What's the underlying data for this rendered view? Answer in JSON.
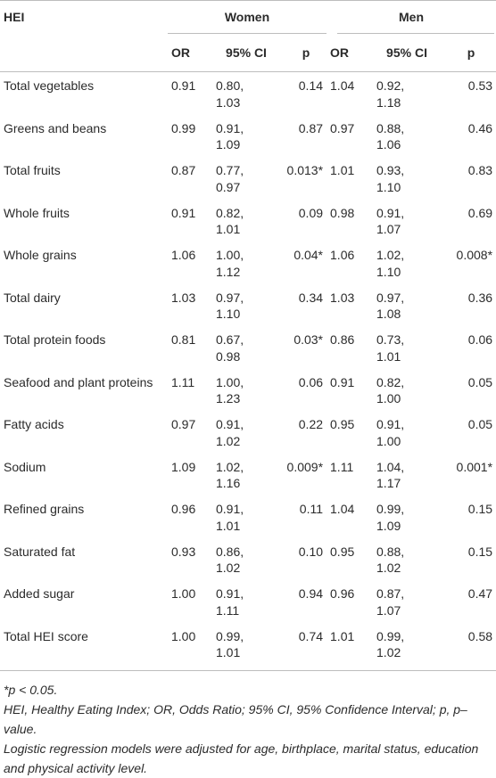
{
  "header": {
    "hei": "HEI",
    "women": "Women",
    "men": "Men",
    "or": "OR",
    "ci": "95% CI",
    "p": "p"
  },
  "rows": [
    {
      "name": "Total vegetables",
      "w_or": "0.91",
      "w_ci1": "0.80,",
      "w_ci2": "1.03",
      "w_p": "0.14",
      "m_or": "1.04",
      "m_ci1": "0.92,",
      "m_ci2": "1.18",
      "m_p": "0.53"
    },
    {
      "name": "Greens and beans",
      "w_or": "0.99",
      "w_ci1": "0.91,",
      "w_ci2": "1.09",
      "w_p": "0.87",
      "m_or": "0.97",
      "m_ci1": "0.88,",
      "m_ci2": "1.06",
      "m_p": "0.46"
    },
    {
      "name": "Total fruits",
      "w_or": "0.87",
      "w_ci1": "0.77,",
      "w_ci2": "0.97",
      "w_p": "0.013*",
      "m_or": "1.01",
      "m_ci1": "0.93,",
      "m_ci2": "1.10",
      "m_p": "0.83"
    },
    {
      "name": "Whole fruits",
      "w_or": "0.91",
      "w_ci1": "0.82,",
      "w_ci2": "1.01",
      "w_p": "0.09",
      "m_or": "0.98",
      "m_ci1": "0.91,",
      "m_ci2": "1.07",
      "m_p": "0.69"
    },
    {
      "name": "Whole grains",
      "w_or": "1.06",
      "w_ci1": "1.00,",
      "w_ci2": "1.12",
      "w_p": "0.04*",
      "m_or": "1.06",
      "m_ci1": "1.02,",
      "m_ci2": "1.10",
      "m_p": "0.008*"
    },
    {
      "name": "Total dairy",
      "w_or": "1.03",
      "w_ci1": "0.97,",
      "w_ci2": "1.10",
      "w_p": "0.34",
      "m_or": "1.03",
      "m_ci1": "0.97,",
      "m_ci2": "1.08",
      "m_p": "0.36"
    },
    {
      "name": "Total protein foods",
      "w_or": "0.81",
      "w_ci1": "0.67,",
      "w_ci2": "0.98",
      "w_p": "0.03*",
      "m_or": "0.86",
      "m_ci1": "0.73,",
      "m_ci2": "1.01",
      "m_p": "0.06"
    },
    {
      "name": "Seafood and plant proteins",
      "w_or": "1.11",
      "w_ci1": "1.00,",
      "w_ci2": "1.23",
      "w_p": "0.06",
      "m_or": "0.91",
      "m_ci1": "0.82,",
      "m_ci2": "1.00",
      "m_p": "0.05"
    },
    {
      "name": "Fatty acids",
      "w_or": "0.97",
      "w_ci1": "0.91,",
      "w_ci2": "1.02",
      "w_p": "0.22",
      "m_or": "0.95",
      "m_ci1": "0.91,",
      "m_ci2": "1.00",
      "m_p": "0.05"
    },
    {
      "name": "Sodium",
      "w_or": "1.09",
      "w_ci1": "1.02,",
      "w_ci2": "1.16",
      "w_p": "0.009*",
      "m_or": "1.11",
      "m_ci1": "1.04,",
      "m_ci2": "1.17",
      "m_p": "0.001*"
    },
    {
      "name": "Refined grains",
      "w_or": "0.96",
      "w_ci1": "0.91,",
      "w_ci2": "1.01",
      "w_p": "0.11",
      "m_or": "1.04",
      "m_ci1": "0.99,",
      "m_ci2": "1.09",
      "m_p": "0.15"
    },
    {
      "name": "Saturated fat",
      "w_or": "0.93",
      "w_ci1": "0.86,",
      "w_ci2": "1.02",
      "w_p": "0.10",
      "m_or": "0.95",
      "m_ci1": "0.88,",
      "m_ci2": "1.02",
      "m_p": "0.15"
    },
    {
      "name": "Added sugar",
      "w_or": "1.00",
      "w_ci1": "0.91,",
      "w_ci2": "1.11",
      "w_p": "0.94",
      "m_or": "0.96",
      "m_ci1": "0.87,",
      "m_ci2": "1.07",
      "m_p": "0.47"
    },
    {
      "name": "Total HEI score",
      "w_or": "1.00",
      "w_ci1": "0.99,",
      "w_ci2": "1.01",
      "w_p": "0.74",
      "m_or": "1.01",
      "m_ci1": "0.99,",
      "m_ci2": "1.02",
      "m_p": "0.58"
    }
  ],
  "notes": {
    "sig": "*p < 0.05.",
    "abbrev": "HEI, Healthy Eating Index; OR, Odds Ratio; 95% CI, 95% Confidence Interval; p, p–value.",
    "model": "Logistic regression models were adjusted for age, birthplace, marital status, education and physical activity level."
  }
}
